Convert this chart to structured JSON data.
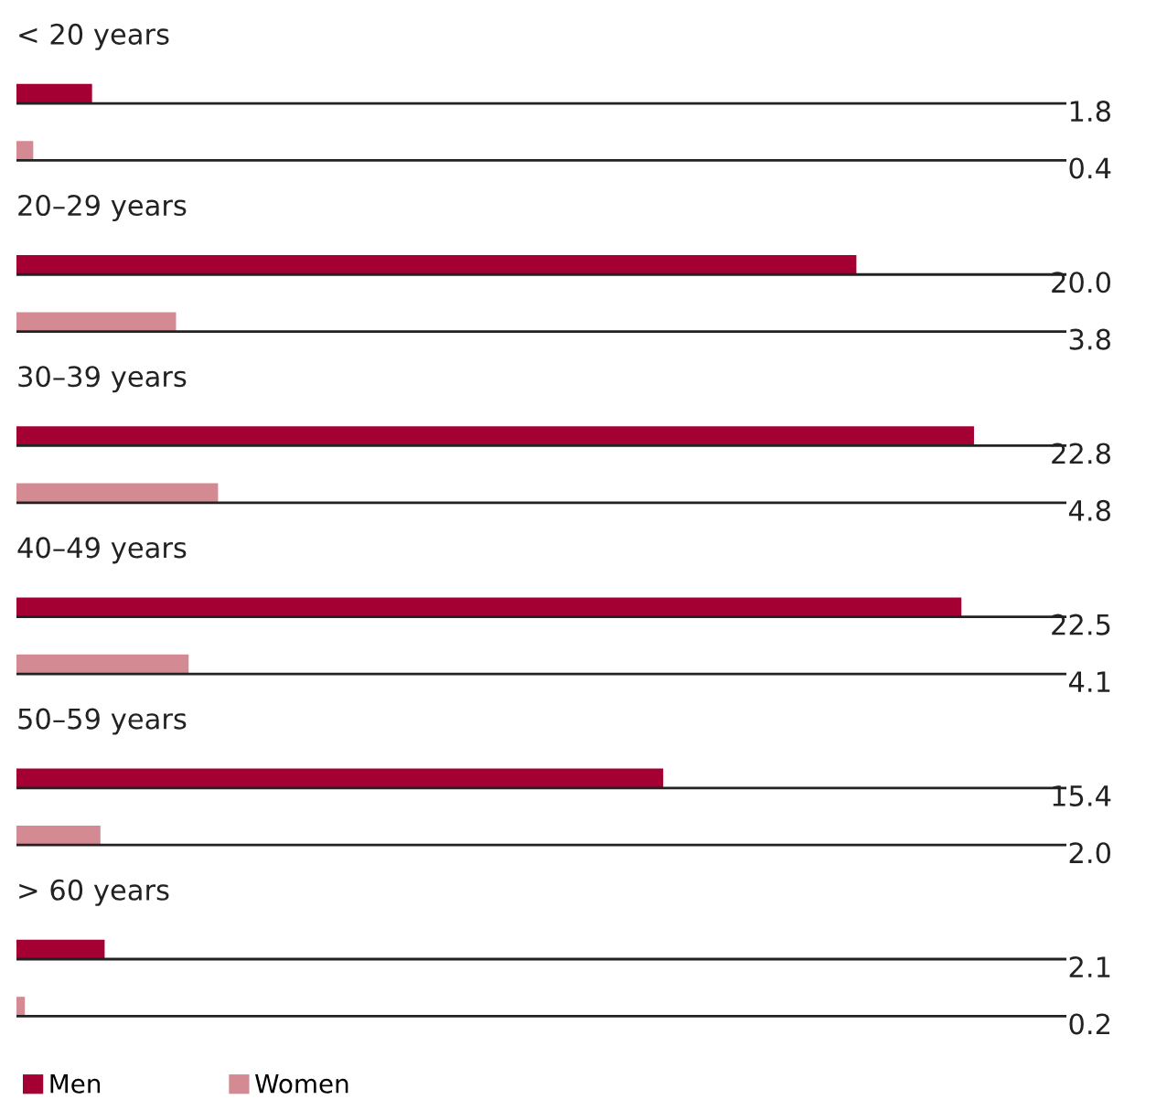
{
  "chart_data": {
    "type": "bar",
    "orientation": "horizontal",
    "categories": [
      "< 20 years",
      "20–29 years",
      "30–39 years",
      "40–49 years",
      "50–59 years",
      "> 60 years"
    ],
    "series": [
      {
        "name": "Men",
        "color": "#a50034",
        "values": [
          1.8,
          20.0,
          22.8,
          22.5,
          15.4,
          2.1
        ],
        "value_labels": [
          "1.8",
          "20.0",
          "22.8",
          "22.5",
          "15.4",
          "2.1"
        ]
      },
      {
        "name": "Women",
        "color": "#d48a92",
        "values": [
          0.4,
          3.8,
          4.8,
          4.1,
          2.0,
          0.2
        ],
        "value_labels": [
          "0.4",
          "3.8",
          "4.8",
          "4.1",
          "2.0",
          "0.2"
        ]
      }
    ],
    "xlim": [
      0,
      25
    ],
    "legend": "bottom left",
    "grid": "y"
  }
}
